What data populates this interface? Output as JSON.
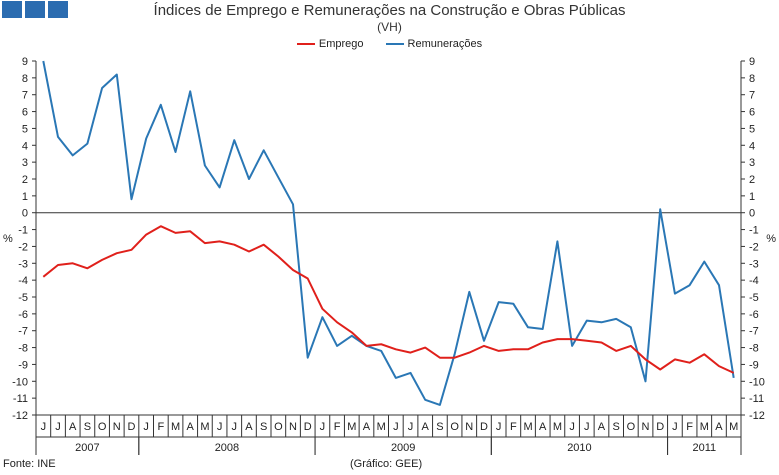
{
  "header": {
    "title": "Índices de Emprego e Remunerações na Construção e Obras Públicas",
    "subtitle": "(VH)"
  },
  "footer": {
    "source": "Fonte: INE",
    "credit": "(Gráfico: GEE)"
  },
  "colors": {
    "brand": "#2b6cb0",
    "emprego": "#e0201b",
    "remuneracoes": "#2a77b5",
    "axis": "#333333"
  },
  "chart_data": {
    "type": "line",
    "title": "Índices de Emprego e Remunerações na Construção e Obras Públicas",
    "subtitle": "(VH)",
    "ylabel": "%",
    "ylim": [
      -12,
      9
    ],
    "yticks": [
      9,
      8,
      7,
      6,
      5,
      4,
      3,
      2,
      1,
      0,
      -1,
      -2,
      -3,
      -4,
      -5,
      -6,
      -7,
      -8,
      -9,
      -10,
      -11,
      -12
    ],
    "grid": false,
    "legend": "top-center",
    "x": [
      "J",
      "J",
      "A",
      "S",
      "O",
      "N",
      "D",
      "J",
      "F",
      "M",
      "A",
      "M",
      "J",
      "J",
      "A",
      "S",
      "O",
      "N",
      "D",
      "J",
      "F",
      "M",
      "A",
      "M",
      "J",
      "J",
      "A",
      "S",
      "O",
      "N",
      "D",
      "J",
      "F",
      "M",
      "A",
      "M",
      "J",
      "J",
      "A",
      "S",
      "O",
      "N",
      "D",
      "J",
      "F",
      "M",
      "A",
      "M"
    ],
    "years": [
      {
        "label": "2007",
        "start": 0,
        "count": 7
      },
      {
        "label": "2008",
        "start": 7,
        "count": 12
      },
      {
        "label": "2009",
        "start": 19,
        "count": 12
      },
      {
        "label": "2010",
        "start": 31,
        "count": 12
      },
      {
        "label": "2011",
        "start": 43,
        "count": 5
      }
    ],
    "series": [
      {
        "name": "Emprego",
        "color": "#e0201b",
        "values": [
          -3.8,
          -3.1,
          -3.0,
          -3.3,
          -2.8,
          -2.4,
          -2.2,
          -1.3,
          -0.8,
          -1.2,
          -1.1,
          -1.8,
          -1.7,
          -1.9,
          -2.3,
          -1.9,
          -2.6,
          -3.4,
          -3.9,
          -5.7,
          -6.5,
          -7.1,
          -7.9,
          -7.8,
          -8.1,
          -8.3,
          -8.0,
          -8.6,
          -8.6,
          -8.3,
          -7.9,
          -8.2,
          -8.1,
          -8.1,
          -7.7,
          -7.5,
          -7.5,
          -7.6,
          -7.7,
          -8.2,
          -7.9,
          -8.7,
          -9.3,
          -8.7,
          -8.9,
          -8.4,
          -9.1,
          -9.5
        ]
      },
      {
        "name": "Remunerações",
        "color": "#2a77b5",
        "values": [
          9.0,
          4.5,
          3.4,
          4.1,
          7.4,
          8.2,
          0.8,
          4.4,
          6.4,
          3.6,
          7.2,
          2.8,
          1.5,
          4.3,
          2.0,
          3.7,
          2.1,
          0.5,
          -8.6,
          -6.2,
          -7.9,
          -7.3,
          -7.9,
          -8.2,
          -9.8,
          -9.5,
          -11.1,
          -11.4,
          -8.4,
          -4.7,
          -7.6,
          -5.3,
          -5.4,
          -6.8,
          -6.9,
          -1.7,
          -7.9,
          -6.4,
          -6.5,
          -6.3,
          -6.8,
          -10.0,
          0.2,
          -4.8,
          -4.3,
          -2.9,
          -4.3,
          -9.8
        ]
      }
    ]
  }
}
